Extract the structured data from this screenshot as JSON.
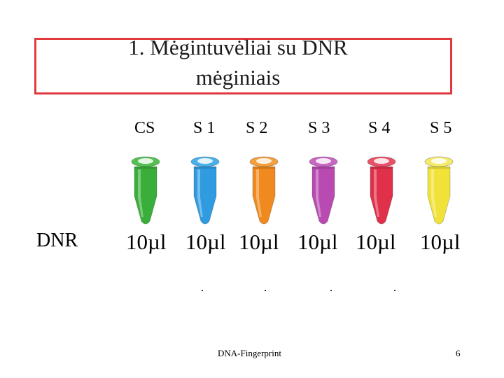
{
  "slide": {
    "title_line1": "1. Mėgintuvėliai su DNR",
    "title_line2": "mėginiais",
    "row_label": "DNR",
    "samples": [
      {
        "label": "CS",
        "amount": "10µl",
        "color": "#3aae3a",
        "cap": "#54c052"
      },
      {
        "label": "S 1",
        "amount": "10µl",
        "color": "#2f9be0",
        "cap": "#4ab0ea"
      },
      {
        "label": "S 2",
        "amount": "10µl",
        "color": "#f08a1e",
        "cap": "#f5a040"
      },
      {
        "label": "S 3",
        "amount": "10µl",
        "color": "#b94ab2",
        "cap": "#c866c2"
      },
      {
        "label": "S 4",
        "amount": "10µl",
        "color": "#e0304a",
        "cap": "#ea5066"
      },
      {
        "label": "S 5",
        "amount": "10µl",
        "color": "#f1e23a",
        "cap": "#f5ea6a"
      }
    ],
    "footer": "DNA-Fingerprint",
    "page_number": "6",
    "accent_border": "#e03a3e"
  }
}
